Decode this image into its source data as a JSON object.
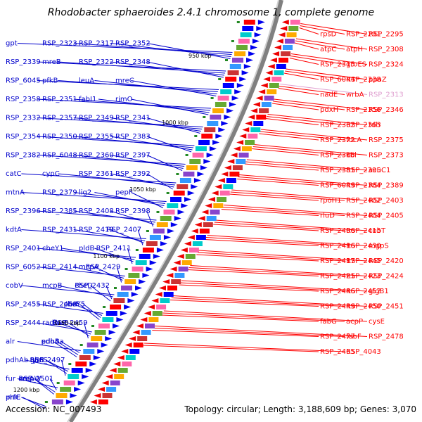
{
  "title": "Rhodobacter sphaeroides 2.4.1 chromosome 1, complete genome",
  "footer": {
    "accession": "Accession: NC_007493",
    "summary": "Topology: circular; Length: 3,188,609 bp; Genes: 3,070"
  },
  "position_labels": [
    "950 kbp",
    "1000 kbp",
    "1050 kbp",
    "1100 kbp",
    "1150 kbp",
    "1200 kbp"
  ],
  "colors": {
    "left_labels": "#0000cc",
    "right_labels": "#ff0000",
    "highlight_label": "#e0a0d0",
    "backbone": "#808080"
  },
  "left_labels": [
    "gpt",
    "RSP_2323",
    "RSP_2317",
    "RSP_2352",
    "RSP_2339",
    "mreB",
    "RSP_2322",
    "RSP_2348",
    "RSP_6045",
    "pfkB",
    "leuA",
    "mreC",
    "RSP_2358",
    "RSP_2351",
    "fabI1",
    "rimO",
    "RSP_2332",
    "RSP_2357",
    "RSP_2349",
    "RSP_2341",
    "RSP_2354",
    "RSP_2350",
    "RSP_2355",
    "RSP_2383",
    "RSP_2382",
    "RSP_6048",
    "RSP_2360",
    "RSP_2397",
    "catC",
    "cypC",
    "RSP_2361",
    "RSP_2392",
    "mtnA",
    "RSP_2379",
    "lig2",
    "pepF",
    "RSP_2396",
    "RSP_2385",
    "RSP_2408",
    "RSP_2398",
    "kdtA",
    "RSP_2431",
    "RSP_2419",
    "RSP_2407",
    "RSP_2401",
    "cheY1",
    "pldB",
    "RSP_2411",
    "RSP_6052",
    "RSP_2414",
    "mcpA",
    "RSP_2429",
    "cobV",
    "mcpB",
    "RSP_2432",
    "cheD",
    "RSP_2455",
    "RSP_2453",
    "cheY5",
    "purF",
    "RSP_2444",
    "radA",
    "fbaB",
    "RSP_2459",
    "alr",
    "pdhAa",
    "pdhB",
    "eno",
    "pdhAb",
    "glmS",
    "tyrS",
    "RSP_2497",
    "fur",
    "RSP_2501",
    "creA",
    "ompW",
    "prfC",
    "rhlE"
  ],
  "right_labels": [
    "rpsD",
    "RSP_2291",
    "RSP_2295",
    "atpC",
    "atpH",
    "RSP_2308",
    "RSP_2315",
    "groES",
    "RSP_2324",
    "RSP_6044",
    "RSP_2338",
    "ppaZ",
    "nadE",
    "wrbA",
    "RSP_2313",
    "pdxH",
    "RSP_2356",
    "RSP_2346",
    "RSP_2362",
    "RSP_2363",
    "tdh",
    "RSP_2372",
    "fucA",
    "RSP_2375",
    "RSP_2368",
    "kbl",
    "RSP_2373",
    "RSP_2381",
    "RSP_2395",
    "acuC1",
    "RSP_6049",
    "RSP_2384",
    "RSP_2389",
    "rpoH1",
    "RSP_2402",
    "RSP_2403",
    "rluD",
    "RSP_2404",
    "RSP_2405",
    "RSP_2406",
    "RSP_2415",
    "cobT",
    "RSP_2416",
    "RSP_2430",
    "mgpS",
    "RSP_2417",
    "RSP_2445",
    "RSP_2420",
    "RSP_2421",
    "RSP_2423",
    "RSP_2424",
    "RSP_2446",
    "RSP_2452",
    "glgB1",
    "RSP_2449",
    "RSP_2450",
    "RSP_2451",
    "fabG",
    "acpP",
    "cysE",
    "RSP_2477",
    "fabF",
    "RSP_2478",
    "RSP_2465",
    "RSP_4043"
  ],
  "highlight_labels": [
    "RSP_2313"
  ]
}
